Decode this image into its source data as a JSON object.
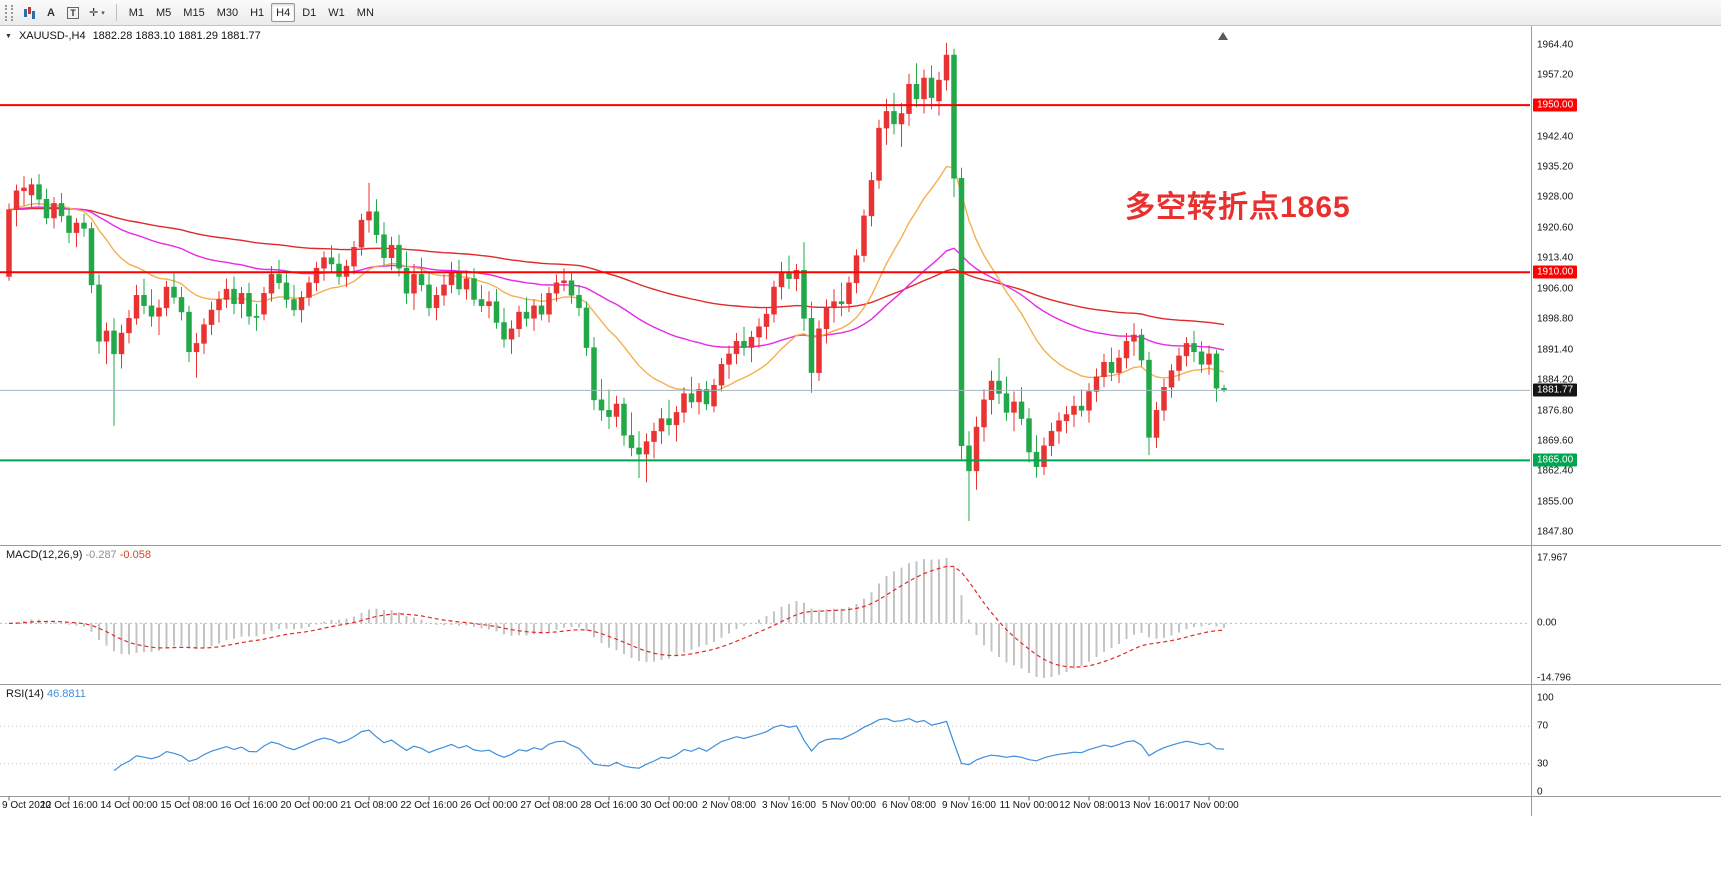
{
  "toolbar": {
    "tools": [
      {
        "name": "charts-icon",
        "glyph": ""
      },
      {
        "name": "text-tool-icon",
        "glyph": "A"
      },
      {
        "name": "text-label-tool-icon",
        "glyph": "T"
      },
      {
        "name": "crosshair-tool-icon",
        "glyph": "✛"
      }
    ],
    "timeframes": [
      "M1",
      "M5",
      "M15",
      "M30",
      "H1",
      "H4",
      "D1",
      "W1",
      "MN"
    ],
    "active_timeframe": "H4"
  },
  "title": {
    "symbol": "XAUUSD-,H4",
    "ohlc": "1882.28 1883.10 1881.29 1881.77"
  },
  "colors": {
    "candle_up": "#e93232",
    "candle_down": "#22a849",
    "ma_fast": "#f4b04f",
    "ma_mid": "#e829e8",
    "ma_slow": "#e02a2a",
    "hline_red": "#fe0000",
    "hline_green": "#00a550",
    "bid_line": "#a4b4bf",
    "bid_box": "#141414",
    "macd_hist": "#c3c3c3",
    "macd_signal": "#e02a2a",
    "rsi_line": "#3f8fdb"
  },
  "chart_data": {
    "type": "candlestick",
    "symbol": "XAUUSD-",
    "timeframe": "H4",
    "current_ohlc": {
      "open": "1882.28",
      "high": "1883.10",
      "low": "1881.29",
      "close": "1881.77"
    },
    "y_axis_ticks": [
      "1964.40",
      "1957.20",
      "1942.40",
      "1935.20",
      "1928.00",
      "1920.60",
      "1913.40",
      "1906.00",
      "1898.80",
      "1891.40",
      "1884.20",
      "1876.80",
      "1869.60",
      "1862.40",
      "1855.00",
      "1847.80"
    ],
    "x_axis_labels": [
      {
        "label": "9 Oct 2020",
        "bar": 0
      },
      {
        "label": "12 Oct 16:00",
        "bar": 8
      },
      {
        "label": "14 Oct 00:00",
        "bar": 16
      },
      {
        "label": "15 Oct 08:00",
        "bar": 24
      },
      {
        "label": "16 Oct 16:00",
        "bar": 32
      },
      {
        "label": "20 Oct 00:00",
        "bar": 40
      },
      {
        "label": "21 Oct 08:00",
        "bar": 48
      },
      {
        "label": "22 Oct 16:00",
        "bar": 56
      },
      {
        "label": "26 Oct 00:00",
        "bar": 64
      },
      {
        "label": "27 Oct 08:00",
        "bar": 72
      },
      {
        "label": "28 Oct 16:00",
        "bar": 80
      },
      {
        "label": "30 Oct 00:00",
        "bar": 88
      },
      {
        "label": "2 Nov 08:00",
        "bar": 96
      },
      {
        "label": "3 Nov 16:00",
        "bar": 104
      },
      {
        "label": "5 Nov 00:00",
        "bar": 112
      },
      {
        "label": "6 Nov 08:00",
        "bar": 120
      },
      {
        "label": "9 Nov 16:00",
        "bar": 128
      },
      {
        "label": "11 Nov 00:00",
        "bar": 136
      },
      {
        "label": "12 Nov 08:00",
        "bar": 144
      },
      {
        "label": "13 Nov 16:00",
        "bar": 152
      },
      {
        "label": "17 Nov 00:00",
        "bar": 160
      }
    ],
    "hlines": [
      {
        "price": 1950.0,
        "label": "1950.00",
        "color": "#fe0000"
      },
      {
        "price": 1910.0,
        "label": "1910.00",
        "color": "#fe0000"
      },
      {
        "price": 1865.0,
        "label": "1865.00",
        "color": "#00a550"
      }
    ],
    "bid_line": {
      "price": 1881.77,
      "label": "1881.77"
    },
    "annotations": [
      {
        "text": "多空转折点1865",
        "color": "#e8312f"
      }
    ],
    "macd": {
      "label": "MACD(12,26,9)",
      "main_value": "-0.287",
      "signal_value": "-0.058",
      "scale_labels": [
        "17.967",
        "0.00",
        "-14.796"
      ]
    },
    "rsi": {
      "label": "RSI(14)",
      "value": "46.8811",
      "scale_labels": [
        "100",
        "70",
        "30",
        "0"
      ]
    },
    "candles": [
      [
        1909.0,
        1926.5,
        1908.0,
        1925.0
      ],
      [
        1925.0,
        1931.0,
        1921.0,
        1929.5
      ],
      [
        1929.5,
        1933.0,
        1926.0,
        1930.2
      ],
      [
        1928.5,
        1932.5,
        1925.5,
        1931.0
      ],
      [
        1931.0,
        1933.5,
        1926.0,
        1927.5
      ],
      [
        1927.5,
        1930.0,
        1921.5,
        1923.0
      ],
      [
        1923.0,
        1928.0,
        1920.5,
        1926.5
      ],
      [
        1926.5,
        1929.0,
        1922.0,
        1923.5
      ],
      [
        1923.5,
        1925.5,
        1917.0,
        1919.5
      ],
      [
        1919.5,
        1923.0,
        1916.0,
        1921.8
      ],
      [
        1921.8,
        1924.0,
        1918.5,
        1920.5
      ],
      [
        1920.5,
        1922.0,
        1905.0,
        1907.0
      ],
      [
        1907.0,
        1909.5,
        1890.5,
        1893.5
      ],
      [
        1893.5,
        1898.0,
        1888.0,
        1896.0
      ],
      [
        1896.0,
        1899.0,
        1873.3,
        1890.5
      ],
      [
        1890.5,
        1897.5,
        1887.0,
        1895.5
      ],
      [
        1895.5,
        1901.0,
        1893.0,
        1899.0
      ],
      [
        1899.0,
        1907.0,
        1897.5,
        1904.5
      ],
      [
        1904.5,
        1908.5,
        1900.0,
        1902.0
      ],
      [
        1902.0,
        1906.0,
        1897.0,
        1899.5
      ],
      [
        1899.5,
        1903.5,
        1895.0,
        1901.5
      ],
      [
        1901.5,
        1908.0,
        1899.5,
        1906.5
      ],
      [
        1906.5,
        1910.0,
        1902.5,
        1904.0
      ],
      [
        1904.0,
        1906.5,
        1898.5,
        1900.5
      ],
      [
        1900.5,
        1902.0,
        1888.5,
        1891.0
      ],
      [
        1891.0,
        1895.5,
        1884.8,
        1893.0
      ],
      [
        1893.0,
        1899.0,
        1890.5,
        1897.5
      ],
      [
        1897.5,
        1903.0,
        1895.0,
        1901.0
      ],
      [
        1901.0,
        1905.5,
        1898.0,
        1903.5
      ],
      [
        1903.5,
        1908.5,
        1901.5,
        1906.0
      ],
      [
        1906.0,
        1909.0,
        1900.0,
        1902.5
      ],
      [
        1902.5,
        1906.5,
        1899.0,
        1905.0
      ],
      [
        1905.0,
        1907.5,
        1897.5,
        1899.5
      ],
      [
        1899.5,
        1902.5,
        1896.0,
        1899.2
      ],
      [
        1900.0,
        1906.5,
        1898.5,
        1905.0
      ],
      [
        1905.0,
        1911.5,
        1903.0,
        1909.5
      ],
      [
        1909.5,
        1913.0,
        1906.0,
        1907.5
      ],
      [
        1907.5,
        1910.5,
        1901.5,
        1903.5
      ],
      [
        1903.5,
        1907.0,
        1899.5,
        1901.0
      ],
      [
        1901.0,
        1905.5,
        1898.0,
        1904.0
      ],
      [
        1904.0,
        1909.0,
        1902.0,
        1907.5
      ],
      [
        1907.5,
        1912.5,
        1905.5,
        1911.0
      ],
      [
        1911.0,
        1915.0,
        1908.0,
        1913.5
      ],
      [
        1913.5,
        1916.5,
        1910.0,
        1912.0
      ],
      [
        1912.0,
        1914.5,
        1907.0,
        1909.0
      ],
      [
        1909.0,
        1913.0,
        1906.5,
        1911.5
      ],
      [
        1911.5,
        1917.5,
        1909.5,
        1916.0
      ],
      [
        1916.0,
        1924.0,
        1914.0,
        1922.5
      ],
      [
        1922.5,
        1931.4,
        1919.5,
        1924.5
      ],
      [
        1924.5,
        1927.5,
        1917.0,
        1919.0
      ],
      [
        1919.0,
        1922.0,
        1911.5,
        1913.5
      ],
      [
        1913.5,
        1918.5,
        1910.5,
        1916.5
      ],
      [
        1916.5,
        1919.0,
        1909.0,
        1911.0
      ],
      [
        1911.0,
        1915.0,
        1902.5,
        1905.0
      ],
      [
        1905.0,
        1912.0,
        1901.0,
        1909.5
      ],
      [
        1909.5,
        1913.5,
        1905.5,
        1907.0
      ],
      [
        1907.0,
        1910.0,
        1899.5,
        1901.5
      ],
      [
        1901.5,
        1906.5,
        1898.5,
        1904.5
      ],
      [
        1904.5,
        1909.5,
        1902.0,
        1907.0
      ],
      [
        1907.0,
        1912.5,
        1905.0,
        1910.0
      ],
      [
        1910.0,
        1913.0,
        1904.5,
        1906.0
      ],
      [
        1906.0,
        1910.5,
        1903.5,
        1908.5
      ],
      [
        1908.5,
        1911.0,
        1902.0,
        1903.5
      ],
      [
        1903.5,
        1907.0,
        1900.5,
        1902.0
      ],
      [
        1902.0,
        1905.5,
        1899.0,
        1903.0
      ],
      [
        1903.0,
        1906.0,
        1896.5,
        1898.0
      ],
      [
        1898.0,
        1901.5,
        1892.0,
        1894.0
      ],
      [
        1894.0,
        1898.5,
        1890.5,
        1896.5
      ],
      [
        1896.5,
        1902.0,
        1894.5,
        1900.5
      ],
      [
        1900.5,
        1904.0,
        1897.0,
        1899.0
      ],
      [
        1899.0,
        1903.5,
        1896.0,
        1902.0
      ],
      [
        1902.0,
        1905.0,
        1898.5,
        1900.0
      ],
      [
        1900.0,
        1906.5,
        1898.0,
        1905.0
      ],
      [
        1905.0,
        1909.5,
        1903.0,
        1907.5
      ],
      [
        1907.5,
        1911.0,
        1905.5,
        1908.0
      ],
      [
        1908.0,
        1910.0,
        1902.5,
        1904.5
      ],
      [
        1904.5,
        1907.0,
        1899.5,
        1901.5
      ],
      [
        1901.5,
        1903.0,
        1890.0,
        1892.0
      ],
      [
        1892.0,
        1894.5,
        1877.0,
        1879.5
      ],
      [
        1879.5,
        1884.5,
        1874.5,
        1877.0
      ],
      [
        1877.0,
        1882.0,
        1872.5,
        1875.5
      ],
      [
        1875.5,
        1880.5,
        1873.0,
        1878.5
      ],
      [
        1878.5,
        1880.0,
        1868.5,
        1871.0
      ],
      [
        1871.0,
        1876.5,
        1866.0,
        1868.0
      ],
      [
        1868.0,
        1872.0,
        1860.8,
        1866.5
      ],
      [
        1866.5,
        1871.5,
        1859.8,
        1869.5
      ],
      [
        1869.5,
        1874.0,
        1865.5,
        1872.0
      ],
      [
        1872.0,
        1877.5,
        1869.0,
        1875.0
      ],
      [
        1875.0,
        1879.5,
        1871.0,
        1873.5
      ],
      [
        1873.5,
        1878.0,
        1869.5,
        1876.5
      ],
      [
        1876.5,
        1882.5,
        1874.0,
        1881.0
      ],
      [
        1881.0,
        1885.0,
        1877.5,
        1879.0
      ],
      [
        1879.0,
        1883.5,
        1876.0,
        1882.0
      ],
      [
        1882.0,
        1884.0,
        1877.0,
        1878.5
      ],
      [
        1878.0,
        1884.5,
        1876.5,
        1883.0
      ],
      [
        1883.0,
        1889.5,
        1881.5,
        1888.0
      ],
      [
        1888.0,
        1892.5,
        1884.5,
        1890.5
      ],
      [
        1890.5,
        1895.5,
        1888.0,
        1893.5
      ],
      [
        1893.5,
        1897.0,
        1890.0,
        1892.0
      ],
      [
        1892.0,
        1896.0,
        1888.5,
        1894.5
      ],
      [
        1894.5,
        1899.0,
        1892.0,
        1897.0
      ],
      [
        1897.0,
        1901.5,
        1894.0,
        1900.0
      ],
      [
        1900.0,
        1908.0,
        1898.0,
        1906.5
      ],
      [
        1906.5,
        1912.5,
        1903.5,
        1910.0
      ],
      [
        1910.0,
        1914.0,
        1906.0,
        1908.5
      ],
      [
        1908.5,
        1912.0,
        1905.5,
        1910.5
      ],
      [
        1910.5,
        1917.2,
        1896.0,
        1899.0
      ],
      [
        1899.0,
        1903.0,
        1881.2,
        1886.0
      ],
      [
        1886.0,
        1898.5,
        1884.0,
        1896.5
      ],
      [
        1896.5,
        1903.5,
        1893.0,
        1901.5
      ],
      [
        1901.5,
        1906.0,
        1898.0,
        1903.0
      ],
      [
        1903.0,
        1907.5,
        1899.5,
        1902.5
      ],
      [
        1902.5,
        1909.0,
        1900.5,
        1907.5
      ],
      [
        1907.5,
        1915.5,
        1905.0,
        1914.0
      ],
      [
        1914.0,
        1925.0,
        1912.5,
        1923.5
      ],
      [
        1923.5,
        1934.0,
        1921.0,
        1932.0
      ],
      [
        1932.0,
        1946.5,
        1930.0,
        1944.5
      ],
      [
        1944.5,
        1951.5,
        1940.5,
        1948.5
      ],
      [
        1948.5,
        1953.0,
        1943.0,
        1945.5
      ],
      [
        1945.5,
        1950.5,
        1940.0,
        1948.0
      ],
      [
        1948.0,
        1957.5,
        1945.0,
        1955.0
      ],
      [
        1955.0,
        1960.0,
        1949.5,
        1951.5
      ],
      [
        1951.5,
        1958.5,
        1948.0,
        1956.5
      ],
      [
        1956.5,
        1959.5,
        1949.0,
        1951.8
      ],
      [
        1951.0,
        1958.0,
        1947.5,
        1956.0
      ],
      [
        1956.0,
        1964.9,
        1953.5,
        1962.0
      ],
      [
        1962.0,
        1963.5,
        1928.0,
        1932.5
      ],
      [
        1932.5,
        1935.0,
        1865.0,
        1868.5
      ],
      [
        1868.5,
        1872.0,
        1850.5,
        1862.5
      ],
      [
        1862.5,
        1875.5,
        1858.0,
        1873.0
      ],
      [
        1873.0,
        1882.0,
        1869.5,
        1879.5
      ],
      [
        1879.5,
        1886.5,
        1876.0,
        1884.0
      ],
      [
        1884.0,
        1889.5,
        1878.5,
        1881.0
      ],
      [
        1881.0,
        1885.0,
        1874.5,
        1876.5
      ],
      [
        1876.5,
        1881.5,
        1872.0,
        1879.0
      ],
      [
        1879.0,
        1882.5,
        1873.5,
        1875.0
      ],
      [
        1875.0,
        1877.5,
        1864.5,
        1867.0
      ],
      [
        1867.0,
        1871.0,
        1860.9,
        1863.5
      ],
      [
        1863.5,
        1870.5,
        1861.5,
        1868.5
      ],
      [
        1868.5,
        1874.0,
        1866.0,
        1872.0
      ],
      [
        1872.0,
        1876.5,
        1869.0,
        1874.5
      ],
      [
        1874.5,
        1878.0,
        1871.5,
        1876.0
      ],
      [
        1876.0,
        1880.5,
        1873.0,
        1878.0
      ],
      [
        1878.0,
        1882.0,
        1875.5,
        1877.0
      ],
      [
        1877.0,
        1883.5,
        1874.0,
        1881.5
      ],
      [
        1881.5,
        1887.0,
        1879.0,
        1885.0
      ],
      [
        1885.0,
        1890.5,
        1882.5,
        1888.5
      ],
      [
        1888.5,
        1892.0,
        1884.0,
        1886.0
      ],
      [
        1886.0,
        1891.5,
        1883.5,
        1889.5
      ],
      [
        1889.5,
        1895.5,
        1887.0,
        1893.5
      ],
      [
        1893.5,
        1897.8,
        1890.0,
        1895.0
      ],
      [
        1895.0,
        1896.5,
        1887.5,
        1889.0
      ],
      [
        1889.0,
        1891.0,
        1866.3,
        1870.5
      ],
      [
        1870.5,
        1879.0,
        1868.0,
        1877.0
      ],
      [
        1877.0,
        1884.5,
        1874.5,
        1882.5
      ],
      [
        1882.5,
        1888.0,
        1880.0,
        1886.5
      ],
      [
        1886.5,
        1892.0,
        1884.0,
        1890.0
      ],
      [
        1890.0,
        1894.5,
        1887.5,
        1893.0
      ],
      [
        1893.0,
        1896.0,
        1888.5,
        1891.0
      ],
      [
        1891.0,
        1893.5,
        1886.0,
        1888.0
      ],
      [
        1888.0,
        1892.5,
        1885.5,
        1890.5
      ],
      [
        1890.5,
        1891.5,
        1879.0,
        1882.3
      ],
      [
        1882.28,
        1883.1,
        1881.29,
        1881.77
      ]
    ]
  }
}
